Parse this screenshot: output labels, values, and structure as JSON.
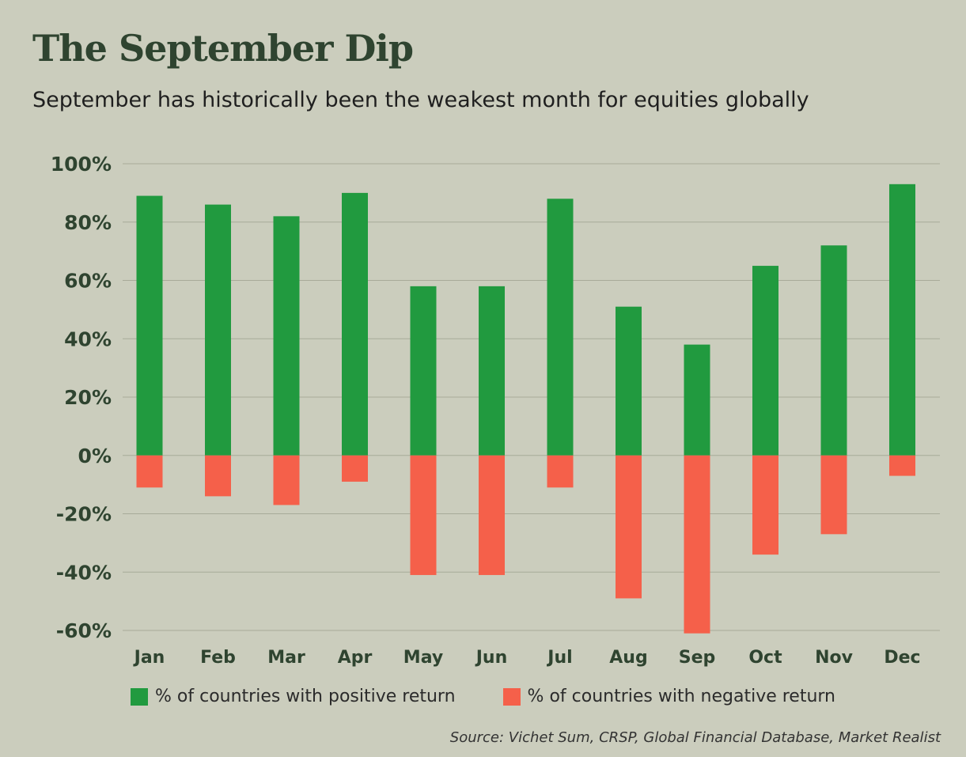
{
  "chart_data": {
    "type": "bar",
    "title": "The September Dip",
    "subtitle": "September has historically been the weakest month for equities globally",
    "categories": [
      "Jan",
      "Feb",
      "Mar",
      "Apr",
      "May",
      "Jun",
      "Jul",
      "Aug",
      "Sep",
      "Oct",
      "Nov",
      "Dec"
    ],
    "series": [
      {
        "name": "% of countries with positive return",
        "color": "#219a3f",
        "values": [
          89,
          86,
          82,
          90,
          58,
          58,
          88,
          51,
          38,
          65,
          72,
          93
        ]
      },
      {
        "name": "% of countries with negative return",
        "color": "#f5604a",
        "values": [
          -11,
          -14,
          -17,
          -9,
          -41,
          -41,
          -11,
          -49,
          -61,
          -34,
          -27,
          -7
        ]
      }
    ],
    "ylim": [
      -60,
      100
    ],
    "yticks": [
      100,
      80,
      60,
      40,
      20,
      0,
      -20,
      -40,
      -60
    ],
    "ytick_labels": [
      "100%",
      "80%",
      "60%",
      "40%",
      "20%",
      "0%",
      "-20%",
      "-40%",
      "-60%"
    ],
    "xlabel": "",
    "ylabel": "",
    "grid": true,
    "legend_position": "bottom",
    "source": "Source: Vichet Sum, CRSP, Global Financial Database, Market Realist"
  },
  "style": {
    "background": "#cbcdbd",
    "title_color": "#2f4430",
    "grid_color": "#a8ab99"
  }
}
